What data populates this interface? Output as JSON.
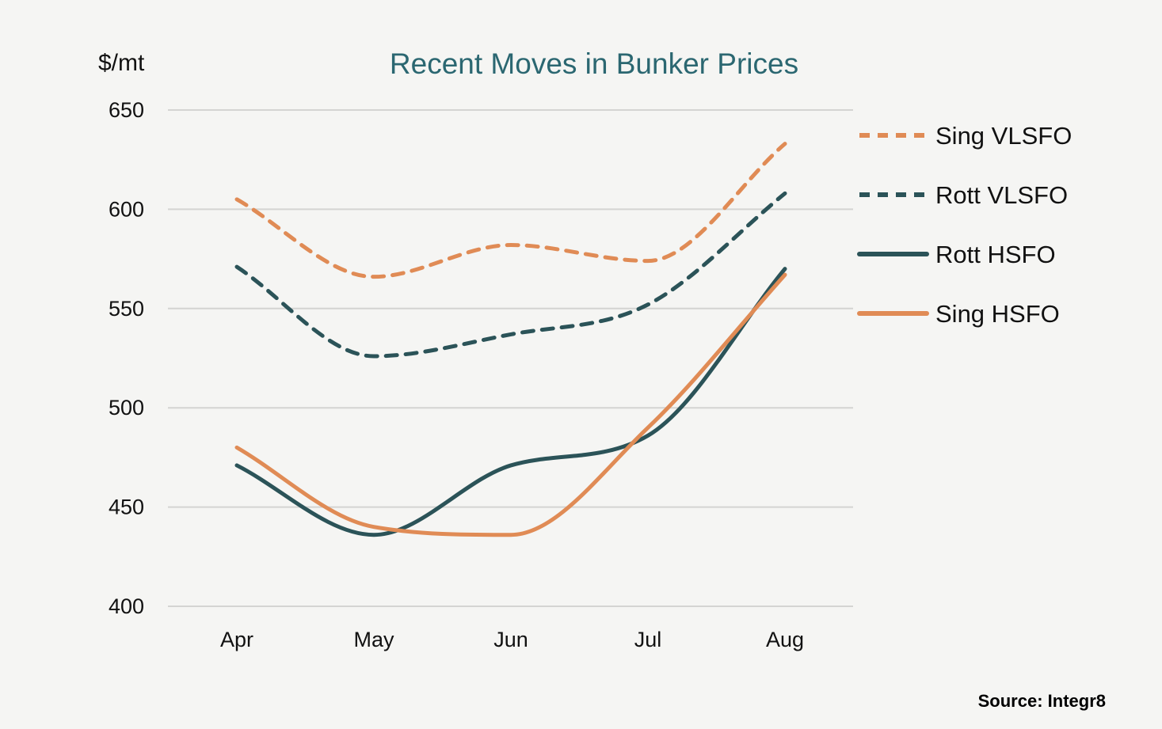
{
  "chart_data": {
    "type": "line",
    "title": "Recent Moves in Bunker Prices",
    "ylabel": "$/mt",
    "xlabel": "",
    "categories": [
      "Apr",
      "May",
      "Jun",
      "Jul",
      "Aug"
    ],
    "ylim": [
      400,
      650
    ],
    "yticks": [
      "400",
      "450",
      "500",
      "550",
      "600",
      "650"
    ],
    "grid": "horizontal",
    "legend_position": "right",
    "series": [
      {
        "name": "Sing VLSFO",
        "values": [
          605,
          566,
          582,
          574,
          633
        ],
        "color": "#e08b55",
        "style": "dashed"
      },
      {
        "name": "Rott VLSFO",
        "values": [
          571,
          526,
          537,
          552,
          608
        ],
        "color": "#2b5358",
        "style": "dashed"
      },
      {
        "name": "Rott HSFO",
        "values": [
          471,
          436,
          471,
          486,
          570
        ],
        "color": "#2b5358",
        "style": "solid"
      },
      {
        "name": "Sing HSFO",
        "values": [
          480,
          440,
          436,
          490,
          567
        ],
        "color": "#e08b55",
        "style": "solid"
      }
    ],
    "source": "Source: Integr8"
  }
}
